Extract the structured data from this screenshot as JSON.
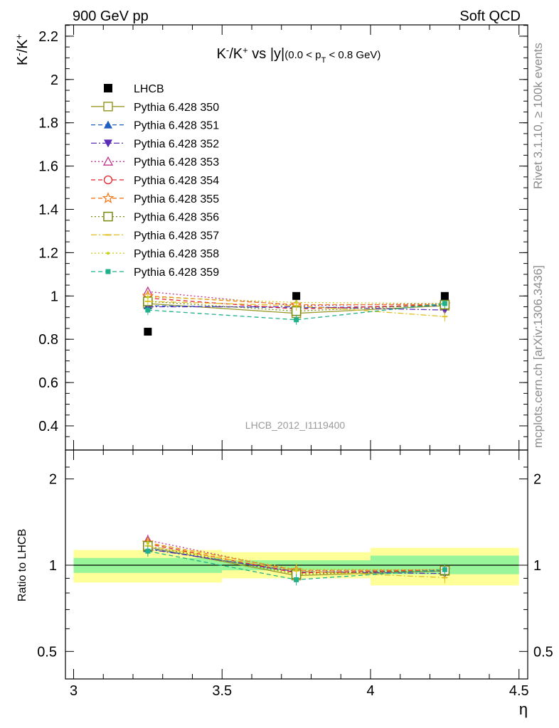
{
  "header": {
    "left": "900 GeV pp",
    "right": "Soft QCD"
  },
  "side_labels": {
    "rivet": "Rivet 3.1.10, ≥ 100k events",
    "mcplots": "mcplots.cern.ch [arXiv:1306.3436]"
  },
  "chart_data": [
    {
      "type": "line",
      "title": "K⁻/K⁺ vs |y|(0.0 < p_T < 0.8 GeV)",
      "ylabel": "K⁻/K⁺",
      "xlabel": "η",
      "watermark": "LHCB_2012_I1119400",
      "xlim": [
        3.0,
        4.5
      ],
      "ylim": [
        0.3,
        2.25
      ],
      "yticks": [
        "0.4",
        "0.6",
        "0.8",
        "1",
        "1.2",
        "1.4",
        "1.6",
        "1.8",
        "2",
        "2.2"
      ],
      "legend_position": "top-left",
      "x": [
        3.25,
        3.75,
        4.25
      ],
      "data": {
        "name": "LHCB",
        "y": [
          0.835,
          1.0,
          1.0
        ],
        "bins": [
          [
            3.0,
            3.5
          ],
          [
            3.5,
            4.0
          ],
          [
            4.0,
            4.5
          ]
        ],
        "color": "#000000"
      },
      "series": [
        {
          "name": "Pythia 6.428 350",
          "color": "#9a9a2a",
          "marker": "square-open",
          "dash": "solid",
          "y": [
            0.965,
            0.92,
            0.955
          ]
        },
        {
          "name": "Pythia 6.428 351",
          "color": "#1f5fbf",
          "marker": "triangle-up",
          "dash": "dashed",
          "y": [
            0.955,
            0.945,
            0.955
          ]
        },
        {
          "name": "Pythia 6.428 352",
          "color": "#5a2ab8",
          "marker": "triangle-down",
          "dash": "dashdot",
          "y": [
            0.95,
            0.95,
            0.935
          ]
        },
        {
          "name": "Pythia 6.428 353",
          "color": "#c0308a",
          "marker": "triangle-up-open",
          "dash": "dotted",
          "y": [
            1.02,
            0.955,
            0.965
          ]
        },
        {
          "name": "Pythia 6.428 354",
          "color": "#e0202a",
          "marker": "circle-open",
          "dash": "dashed",
          "y": [
            0.99,
            0.94,
            0.96
          ]
        },
        {
          "name": "Pythia 6.428 355",
          "color": "#f07a20",
          "marker": "star-open",
          "dash": "dashed",
          "y": [
            1.0,
            0.96,
            0.96
          ]
        },
        {
          "name": "Pythia 6.428 356",
          "color": "#7a8a10",
          "marker": "square-open",
          "dash": "dotted",
          "y": [
            0.975,
            0.93,
            0.96
          ]
        },
        {
          "name": "Pythia 6.428 357",
          "color": "#e0c020",
          "marker": "dash",
          "dash": "dashdot",
          "y": [
            0.975,
            0.955,
            0.905
          ]
        },
        {
          "name": "Pythia 6.428 358",
          "color": "#c8d020",
          "marker": "dot",
          "dash": "dotted",
          "y": [
            0.995,
            0.97,
            0.965
          ]
        },
        {
          "name": "Pythia 6.428 359",
          "color": "#20b08a",
          "marker": "square-small",
          "dash": "dashed",
          "y": [
            0.935,
            0.89,
            0.965
          ]
        }
      ]
    },
    {
      "type": "line",
      "title": "",
      "ylabel": "Ratio to LHCB",
      "xlabel": "η",
      "scale": "log",
      "xlim": [
        3.0,
        4.5
      ],
      "ylim": [
        0.4,
        2.35
      ],
      "yticks": [
        "0.5",
        "1",
        "2"
      ],
      "xticks": [
        "3",
        "3.5",
        "4",
        "4.5"
      ],
      "bands": [
        {
          "x": [
            3.0,
            3.5
          ],
          "green": [
            0.94,
            1.06
          ],
          "yellow": [
            0.87,
            1.13
          ]
        },
        {
          "x": [
            3.5,
            4.0
          ],
          "green": [
            0.96,
            1.04
          ],
          "yellow": [
            0.9,
            1.11
          ]
        },
        {
          "x": [
            4.0,
            4.5
          ],
          "green": [
            0.93,
            1.08
          ],
          "yellow": [
            0.85,
            1.15
          ]
        }
      ],
      "series_ratios": [
        [
          1.156,
          0.92,
          0.955
        ],
        [
          1.144,
          0.945,
          0.955
        ],
        [
          1.138,
          0.95,
          0.935
        ],
        [
          1.222,
          0.955,
          0.965
        ],
        [
          1.186,
          0.94,
          0.96
        ],
        [
          1.198,
          0.96,
          0.96
        ],
        [
          1.168,
          0.93,
          0.96
        ],
        [
          1.168,
          0.955,
          0.905
        ],
        [
          1.192,
          0.97,
          0.965
        ],
        [
          1.12,
          0.89,
          0.965
        ]
      ]
    }
  ]
}
